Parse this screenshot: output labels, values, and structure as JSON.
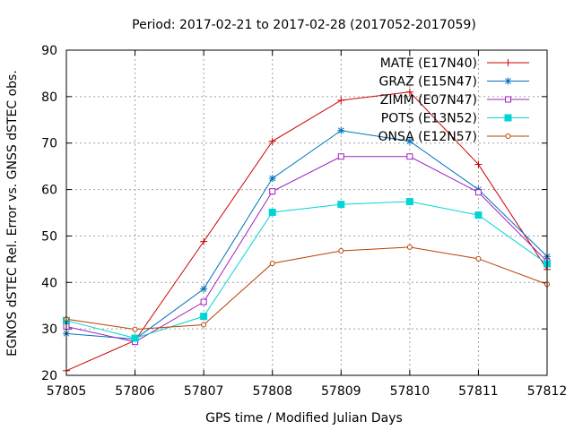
{
  "chart_data": {
    "type": "line",
    "title": "Period: 2017-02-21 to 2017-02-28 (2017052-2017059)",
    "xlabel": "GPS time / Modified Julian Days",
    "ylabel": "EGNOS dSTEC Rel. Error vs. GNSS dSTEC obs.",
    "xlim": [
      57805,
      57812
    ],
    "ylim": [
      20,
      90
    ],
    "x_ticks": [
      57805,
      57806,
      57807,
      57808,
      57809,
      57810,
      57811,
      57812
    ],
    "y_ticks": [
      20,
      30,
      40,
      50,
      60,
      70,
      80,
      90
    ],
    "grid": true,
    "legend_position": "top-right",
    "x": [
      57805,
      57806,
      57807,
      57808,
      57809,
      57810,
      57811,
      57812
    ],
    "series": [
      {
        "name": "MATE (E17N40)",
        "color": "#cc0000",
        "marker": "plus",
        "values": [
          21,
          27.5,
          48.8,
          70.4,
          79.2,
          81,
          65.4,
          42.8
        ]
      },
      {
        "name": "GRAZ (E15N47)",
        "color": "#0072bd",
        "marker": "star",
        "values": [
          29,
          27.8,
          38.6,
          62.4,
          72.7,
          70.4,
          60,
          45.6
        ]
      },
      {
        "name": "ZIMM (E07N47)",
        "color": "#a020c0",
        "marker": "open-square",
        "values": [
          30.5,
          27.2,
          35.8,
          59.6,
          67.1,
          67.1,
          59.4,
          44.5
        ]
      },
      {
        "name": "POTS (E13N52)",
        "color": "#00d5d5",
        "marker": "filled-square",
        "values": [
          31.8,
          28,
          32.7,
          55.1,
          56.8,
          57.4,
          54.5,
          44
        ]
      },
      {
        "name": "ONSA (E12N57)",
        "color": "#b84000",
        "marker": "open-circle",
        "values": [
          32.1,
          29.9,
          30.9,
          44.1,
          46.8,
          47.6,
          45.1,
          39.6
        ]
      }
    ]
  }
}
